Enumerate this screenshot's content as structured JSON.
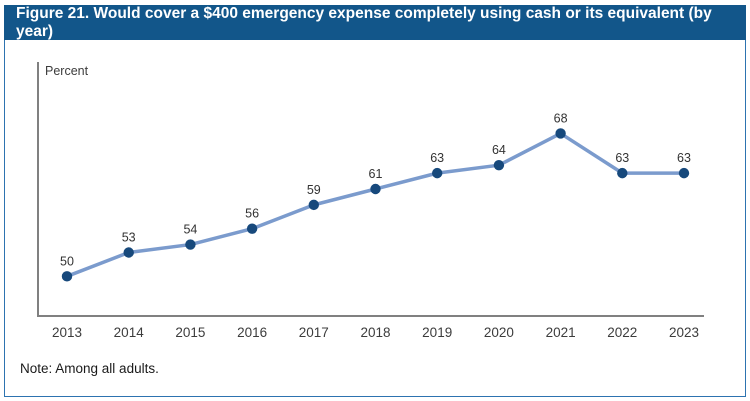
{
  "figure": {
    "title": "Figure 21. Would cover a $400 emergency expense completely using cash or its equivalent (by year)",
    "y_axis_label": "Percent",
    "note": "Note: Among all adults."
  },
  "colors": {
    "header_bg": "#12568a",
    "header_text": "#ffffff",
    "frame_border": "#2d73b0",
    "line": "#7b9bcd",
    "marker": "#17497c",
    "axis": "#808080",
    "label_text": "#333333"
  },
  "chart_data": {
    "type": "line",
    "title": "Figure 21. Would cover a $400 emergency expense completely using cash or its equivalent (by year)",
    "categories": [
      "2013",
      "2014",
      "2015",
      "2016",
      "2017",
      "2018",
      "2019",
      "2020",
      "2021",
      "2022",
      "2023"
    ],
    "values": [
      50,
      53,
      54,
      56,
      59,
      61,
      63,
      64,
      68,
      63,
      63
    ],
    "xlabel": "",
    "ylabel": "Percent",
    "ylim": [
      45,
      77
    ],
    "grid": false,
    "legend": "none",
    "data_labels": true,
    "note": "Note: Among all adults."
  }
}
